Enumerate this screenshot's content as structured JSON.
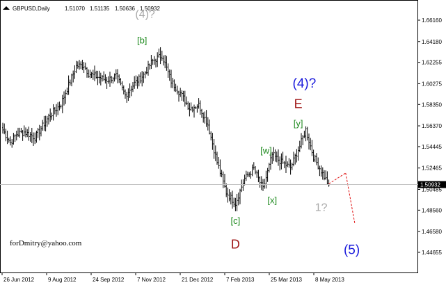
{
  "header": {
    "icon": "chart-icon",
    "symbol": "GBPUSD,Daily",
    "ohlc": [
      "1.51070",
      "1.51135",
      "1.50636",
      "1.50932"
    ]
  },
  "signature": "forDmitry@yahoo.com",
  "current_price": "1.50932",
  "colors": {
    "background": "#ffffff",
    "bars": "#000000",
    "green_label": "#1f8a1f",
    "red_label": "#a01818",
    "blue_label": "#1a1adc",
    "gray_label": "#a9a9a9",
    "forecast": "#e01010"
  },
  "chart_data": {
    "type": "ohlc",
    "symbol": "GBPUSD",
    "timeframe": "Daily",
    "grid": false,
    "y_ticks": [
      "1.66160",
      "1.64180",
      "1.62255",
      "1.60275",
      "1.58350",
      "1.56370",
      "1.54445",
      "1.52465",
      "1.50485",
      "1.48560",
      "1.46580",
      "1.44655"
    ],
    "ylim": [
      1.4437,
      1.6754
    ],
    "x_ticks": [
      "26 Jun 2012",
      "9 Aug 2012",
      "24 Sep 2012",
      "7 Nov 2012",
      "21 Dec 2012",
      "7 Feb 2013",
      "25 Mar 2013",
      "8 May 2013"
    ],
    "price_path": [
      {
        "bar": 0,
        "close": 1.56
      },
      {
        "bar": 5,
        "close": 1.548
      },
      {
        "bar": 9,
        "close": 1.556
      },
      {
        "bar": 14,
        "close": 1.558
      },
      {
        "bar": 21,
        "close": 1.553
      },
      {
        "bar": 30,
        "close": 1.572
      },
      {
        "bar": 38,
        "close": 1.584
      },
      {
        "bar": 48,
        "close": 1.619
      },
      {
        "bar": 53,
        "close": 1.62
      },
      {
        "bar": 56,
        "close": 1.612
      },
      {
        "bar": 62,
        "close": 1.609
      },
      {
        "bar": 68,
        "close": 1.606
      },
      {
        "bar": 74,
        "close": 1.61
      },
      {
        "bar": 80,
        "close": 1.592
      },
      {
        "bar": 86,
        "close": 1.603
      },
      {
        "bar": 92,
        "close": 1.611
      },
      {
        "bar": 98,
        "close": 1.624
      },
      {
        "bar": 104,
        "close": 1.629
      },
      {
        "bar": 110,
        "close": 1.605
      },
      {
        "bar": 116,
        "close": 1.594
      },
      {
        "bar": 122,
        "close": 1.58
      },
      {
        "bar": 128,
        "close": 1.583
      },
      {
        "bar": 134,
        "close": 1.565
      },
      {
        "bar": 140,
        "close": 1.53
      },
      {
        "bar": 146,
        "close": 1.502
      },
      {
        "bar": 152,
        "close": 1.492
      },
      {
        "bar": 158,
        "close": 1.515
      },
      {
        "bar": 164,
        "close": 1.524
      },
      {
        "bar": 170,
        "close": 1.505
      },
      {
        "bar": 176,
        "close": 1.537
      },
      {
        "bar": 182,
        "close": 1.53
      },
      {
        "bar": 188,
        "close": 1.525
      },
      {
        "bar": 194,
        "close": 1.545
      },
      {
        "bar": 198,
        "close": 1.56
      },
      {
        "bar": 203,
        "close": 1.535
      },
      {
        "bar": 208,
        "close": 1.522
      },
      {
        "bar": 213,
        "close": 1.509
      }
    ],
    "annotations": [
      {
        "text": "(4)?",
        "color": "gray",
        "bar": 93,
        "price": 1.664
      },
      {
        "text": "[b]",
        "color": "green",
        "bar": 91,
        "price": 1.64
      },
      {
        "text": "(4)?",
        "color": "blue",
        "bar": 197,
        "price": 1.599
      },
      {
        "text": "E",
        "color": "red",
        "bar": 193,
        "price": 1.58
      },
      {
        "text": "[y]",
        "color": "green",
        "bar": 193,
        "price": 1.563
      },
      {
        "text": "[w]",
        "color": "green",
        "bar": 172,
        "price": 1.538
      },
      {
        "text": "[x]",
        "color": "green",
        "bar": 176,
        "price": 1.492
      },
      {
        "text": "[c]",
        "color": "green",
        "bar": 152,
        "price": 1.473
      },
      {
        "text": "D",
        "color": "red",
        "bar": 152,
        "price": 1.45
      },
      {
        "text": "1?",
        "color": "gray",
        "bar": 208,
        "price": 1.485
      },
      {
        "text": "(5)",
        "color": "blue",
        "bar": 228,
        "price": 1.445
      }
    ],
    "forecast_path": [
      {
        "bar": 213,
        "price": 1.51
      },
      {
        "bar": 224,
        "price": 1.52
      },
      {
        "bar": 230,
        "price": 1.473
      }
    ]
  }
}
